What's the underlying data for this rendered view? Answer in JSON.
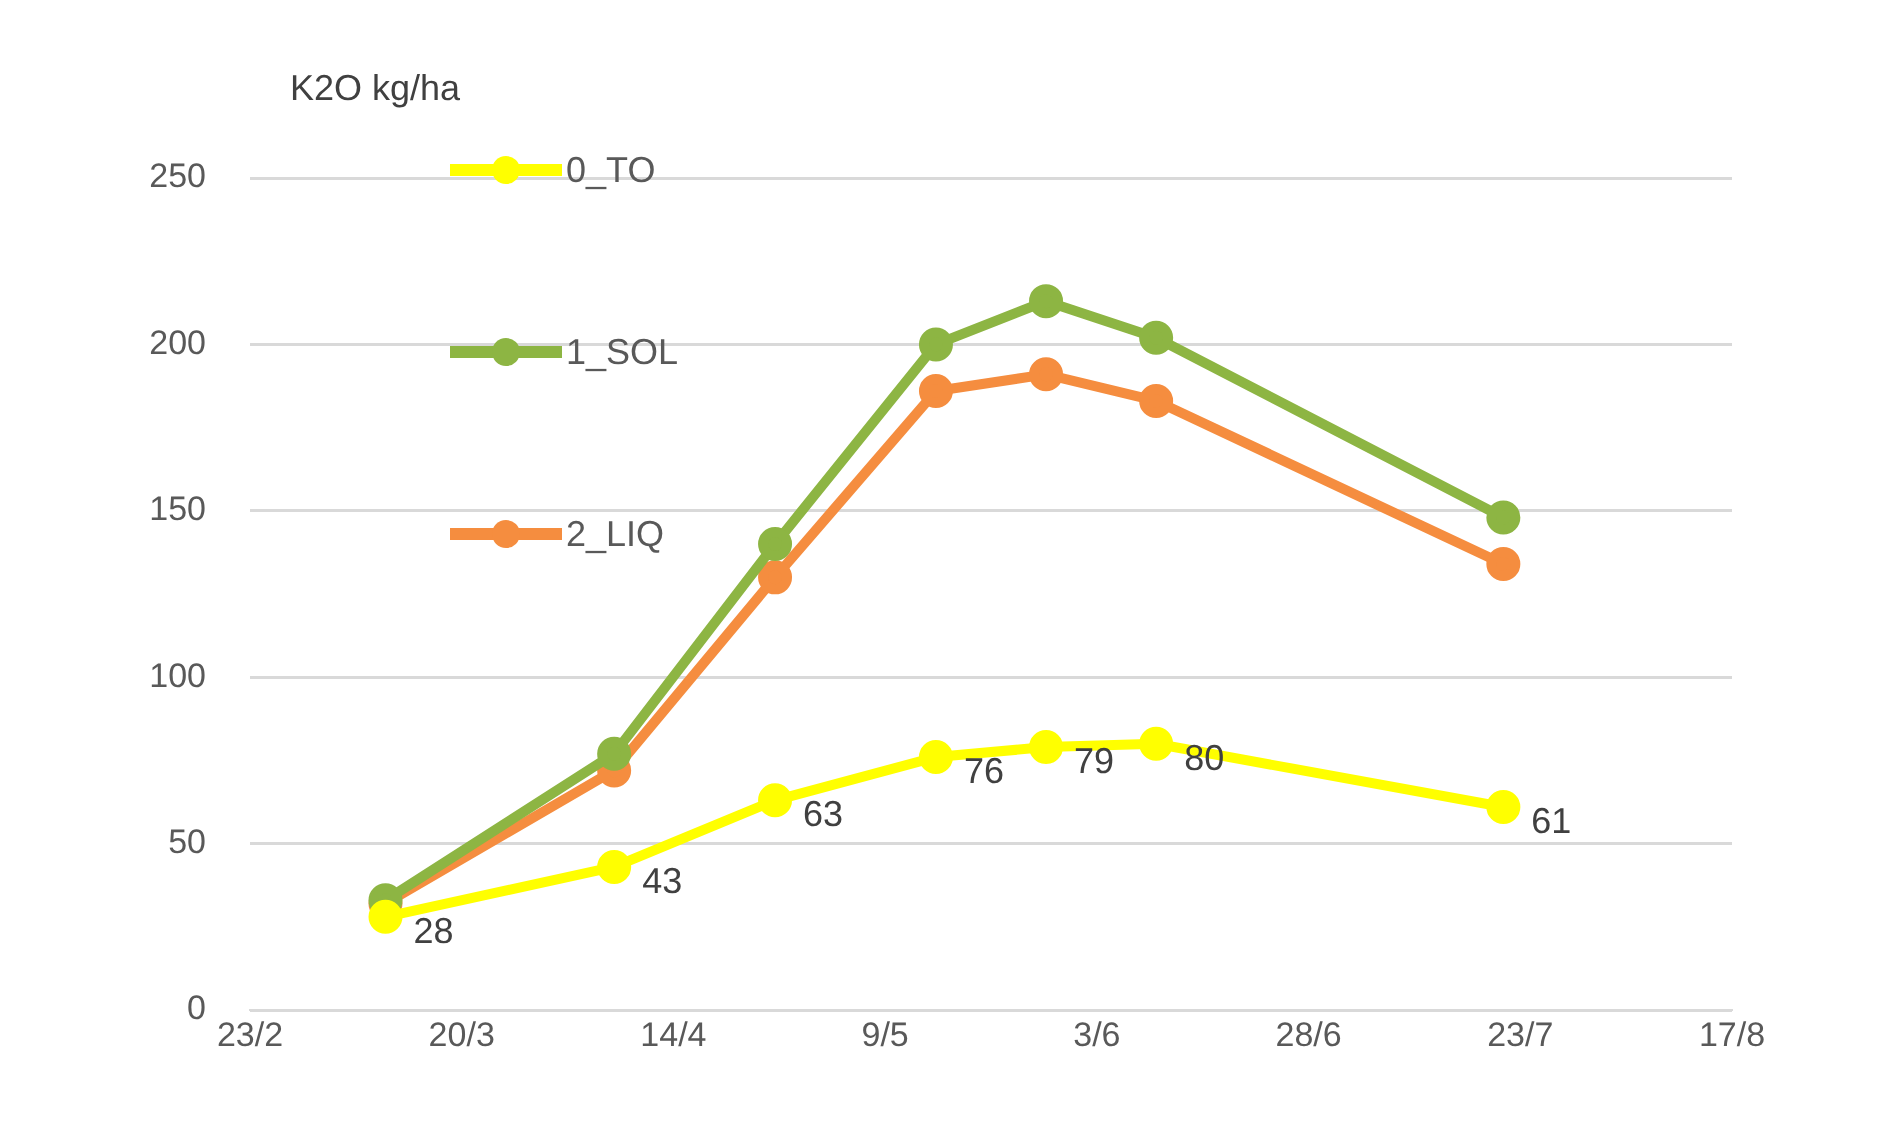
{
  "chart_data": {
    "type": "line",
    "ylabel": "K2O kg/ha",
    "x": [
      "--03-11",
      "--04-07",
      "--04-26",
      "--05-15",
      "--05-28",
      "--06-10",
      "--07-21"
    ],
    "series": [
      {
        "name": "0_TO",
        "color": "#ffff00",
        "values": [
          28,
          43,
          63,
          76,
          79,
          80,
          61
        ],
        "value_labels": [
          "28",
          "43",
          "63",
          "76",
          "79",
          "80",
          "61"
        ]
      },
      {
        "name": "1_SOL",
        "color": "#8db543",
        "values": [
          33,
          77,
          140,
          200,
          213,
          202,
          148
        ]
      },
      {
        "name": "2_LIQ",
        "color": "#f58d3f",
        "values": [
          32,
          72,
          130,
          186,
          191,
          183,
          134
        ]
      }
    ],
    "xlim": [
      "--02-23",
      "--08-17"
    ],
    "xticks": [
      {
        "value": "--02-23",
        "label": "23/2"
      },
      {
        "value": "--03-20",
        "label": "20/3"
      },
      {
        "value": "--04-14",
        "label": "14/4"
      },
      {
        "value": "--05-09",
        "label": "9/5"
      },
      {
        "value": "--06-03",
        "label": "3/6"
      },
      {
        "value": "--06-28",
        "label": "28/6"
      },
      {
        "value": "--07-23",
        "label": "23/7"
      },
      {
        "value": "--08-17",
        "label": "17/8"
      }
    ],
    "ylim": [
      0,
      250
    ],
    "yticks": [
      0,
      50,
      100,
      150,
      200,
      250
    ],
    "grid": "y",
    "legend": "top left",
    "marker": "circle",
    "line_style": "solid"
  }
}
